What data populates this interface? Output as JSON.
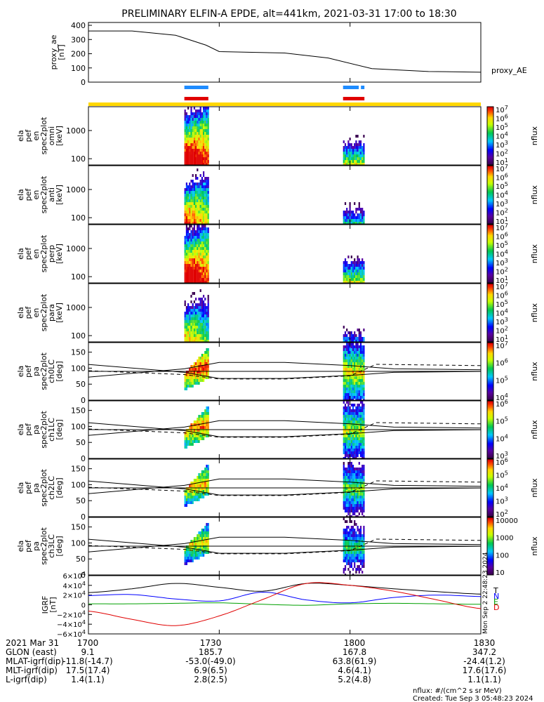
{
  "title": "PRELIMINARY ELFIN-A EPDE, alt=441km, 2021-03-31 17:00 to 18:30",
  "colors": {
    "orbit_bar": "#ffd700",
    "blue_bar": "#1e8cff",
    "red_bar": "#e00000",
    "bx": "#000000",
    "by": "#0000ff",
    "bz": "#00a000",
    "bd": "#e00000"
  },
  "chart_data": [
    {
      "type": "line",
      "panel": "ae",
      "ylabel": [
        "proxy_ae",
        "[nT]"
      ],
      "legend": "proxy_AE",
      "yticks": [
        "400",
        "300",
        "200",
        "100",
        "0"
      ],
      "ylim": [
        0,
        420
      ],
      "x_minutes": [
        0,
        10,
        20,
        27,
        30,
        45,
        55,
        65,
        78,
        90
      ],
      "series": [
        {
          "name": "proxy_AE",
          "values": [
            360,
            360,
            330,
            260,
            215,
            205,
            170,
            95,
            75,
            70
          ]
        }
      ]
    },
    {
      "type": "bar",
      "panel": "science-zone-indicators",
      "series": [
        {
          "name": "blue",
          "segments": [
            [
              22,
              27.5
            ],
            [
              58.4,
              62
            ],
            [
              62.5,
              63.3
            ]
          ]
        },
        {
          "name": "red",
          "segments": [
            [
              22,
              27.5
            ],
            [
              58.4,
              63.3
            ]
          ]
        }
      ]
    },
    {
      "type": "heatmap",
      "panel": "omni",
      "ylabel": [
        "ela",
        "pef",
        "en",
        "spec2plot",
        "omni",
        "[keV]"
      ],
      "yticks": [
        "1000",
        "100"
      ],
      "colorbar_label": "nflux",
      "colorbar_ticks": [
        "10^7",
        "10^6",
        "10^5",
        "10^4",
        "10^3",
        "10^2",
        "10^1"
      ]
    },
    {
      "type": "heatmap",
      "panel": "anti",
      "ylabel": [
        "ela",
        "pef",
        "en",
        "spec2plot",
        "anti",
        "[keV]"
      ],
      "yticks": [
        "1000",
        "100"
      ],
      "colorbar_label": "nflux",
      "colorbar_ticks": [
        "10^7",
        "10^6",
        "10^5",
        "10^4",
        "10^3",
        "10^2",
        "10^1"
      ]
    },
    {
      "type": "heatmap",
      "panel": "perp",
      "ylabel": [
        "ela",
        "pef",
        "en",
        "spec2plot",
        "perp",
        "[keV]"
      ],
      "yticks": [
        "1000",
        "100"
      ],
      "colorbar_label": "nflux",
      "colorbar_ticks": [
        "10^7",
        "10^6",
        "10^5",
        "10^4",
        "10^3",
        "10^2",
        "10^1"
      ]
    },
    {
      "type": "heatmap",
      "panel": "para",
      "ylabel": [
        "ela",
        "pef",
        "en",
        "spec2plot",
        "para",
        "[keV]"
      ],
      "yticks": [
        "1000",
        "100"
      ],
      "colorbar_label": "nflux",
      "colorbar_ticks": [
        "10^7",
        "10^6",
        "10^5",
        "10^4",
        "10^3",
        "10^2",
        "10^1"
      ]
    },
    {
      "type": "heatmap",
      "panel": "ch0LC",
      "ylabel": [
        "ela",
        "pef",
        "pa",
        "spec2plot",
        "ch0LC",
        "[deg]"
      ],
      "yticks": [
        "150",
        "100",
        "50",
        "0"
      ],
      "colorbar_label": "nflux",
      "colorbar_ticks": [
        "10^7",
        "10^6",
        "10^5",
        "10^4"
      ]
    },
    {
      "type": "heatmap",
      "panel": "ch1LC",
      "ylabel": [
        "ela",
        "pef",
        "pa",
        "spec2plot",
        "ch1LC",
        "[deg]"
      ],
      "yticks": [
        "150",
        "100",
        "50",
        "0"
      ],
      "colorbar_label": "nflux",
      "colorbar_ticks": [
        "10^6",
        "10^5",
        "10^4",
        "10^3"
      ]
    },
    {
      "type": "heatmap",
      "panel": "ch2LC",
      "ylabel": [
        "ela",
        "pef",
        "pa",
        "spec2plot",
        "ch2LC",
        "[deg]"
      ],
      "yticks": [
        "150",
        "100",
        "50",
        "0"
      ],
      "colorbar_label": "nflux",
      "colorbar_ticks": [
        "10^6",
        "10^5",
        "10^4",
        "10^3",
        "10^2"
      ]
    },
    {
      "type": "heatmap",
      "panel": "ch3LC",
      "ylabel": [
        "ela",
        "pef",
        "pa",
        "spec2plot",
        "ch3LC",
        "[deg]"
      ],
      "yticks": [
        "150",
        "100",
        "50",
        "0"
      ],
      "colorbar_label": "nflux",
      "colorbar_ticks": [
        "10000",
        "1000",
        "100",
        "10"
      ]
    },
    {
      "type": "line",
      "panel": "igrf",
      "ylabel": [
        "IGRF",
        "[nT]"
      ],
      "yticks": [
        "6×10^4",
        "4×10^4",
        "2×10^4",
        "0",
        "−2×10^4",
        "−4×10^4",
        "−6×10^4"
      ],
      "ylim": [
        -60000,
        60000
      ],
      "legend": [
        "T",
        "N",
        "E",
        "D"
      ],
      "side_text": "Mon Sep 2 22:48:23 2024",
      "x_minutes": [
        0,
        10,
        20,
        30,
        40,
        50,
        60,
        70,
        80,
        90
      ],
      "series": [
        {
          "name": "T",
          "values": [
            25000,
            33000,
            44000,
            36000,
            28000,
            44000,
            40000,
            33000,
            27000,
            22000
          ]
        },
        {
          "name": "N",
          "values": [
            19000,
            21000,
            12000,
            8000,
            26000,
            10000,
            4000,
            15000,
            20000,
            17000
          ]
        },
        {
          "name": "E",
          "values": [
            2000,
            2000,
            3000,
            4000,
            1000,
            -1000,
            2000,
            3000,
            2000,
            1000
          ]
        },
        {
          "name": "D",
          "values": [
            -13000,
            -30000,
            -43000,
            -23000,
            11000,
            44000,
            40000,
            28000,
            10000,
            -8000
          ]
        }
      ]
    }
  ],
  "xticks": [
    "1700",
    "1730",
    "1800",
    "1830"
  ],
  "ephemeris": [
    {
      "label": "2021 Mar 31",
      "values": [
        "1700",
        "",
        "",
        ""
      ]
    },
    {
      "label": "GLON (east)",
      "values": [
        "9.1",
        "185.7",
        "167.8",
        "347.2"
      ]
    },
    {
      "label": "MLAT-igrf(dip)",
      "values": [
        "-11.8(-14.7)",
        "-53.0(-49.0)",
        "63.8(61.9)",
        "-24.4(1.2)"
      ]
    },
    {
      "label": "MLT-igrf(dip)",
      "values": [
        "17.5(17.4)",
        "6.9(6.5)",
        "4.6(4.1)",
        "17.6(17.6)"
      ]
    },
    {
      "label": "L-igrf(dip)",
      "values": [
        "1.4(1.1)",
        "2.8(2.5)",
        "5.2(4.8)",
        "1.1(1.1)"
      ]
    }
  ],
  "footer": {
    "units": "nflux: #/(cm^2 s sr MeV)",
    "created": "Created: Tue Sep  3 05:48:23 2024"
  }
}
